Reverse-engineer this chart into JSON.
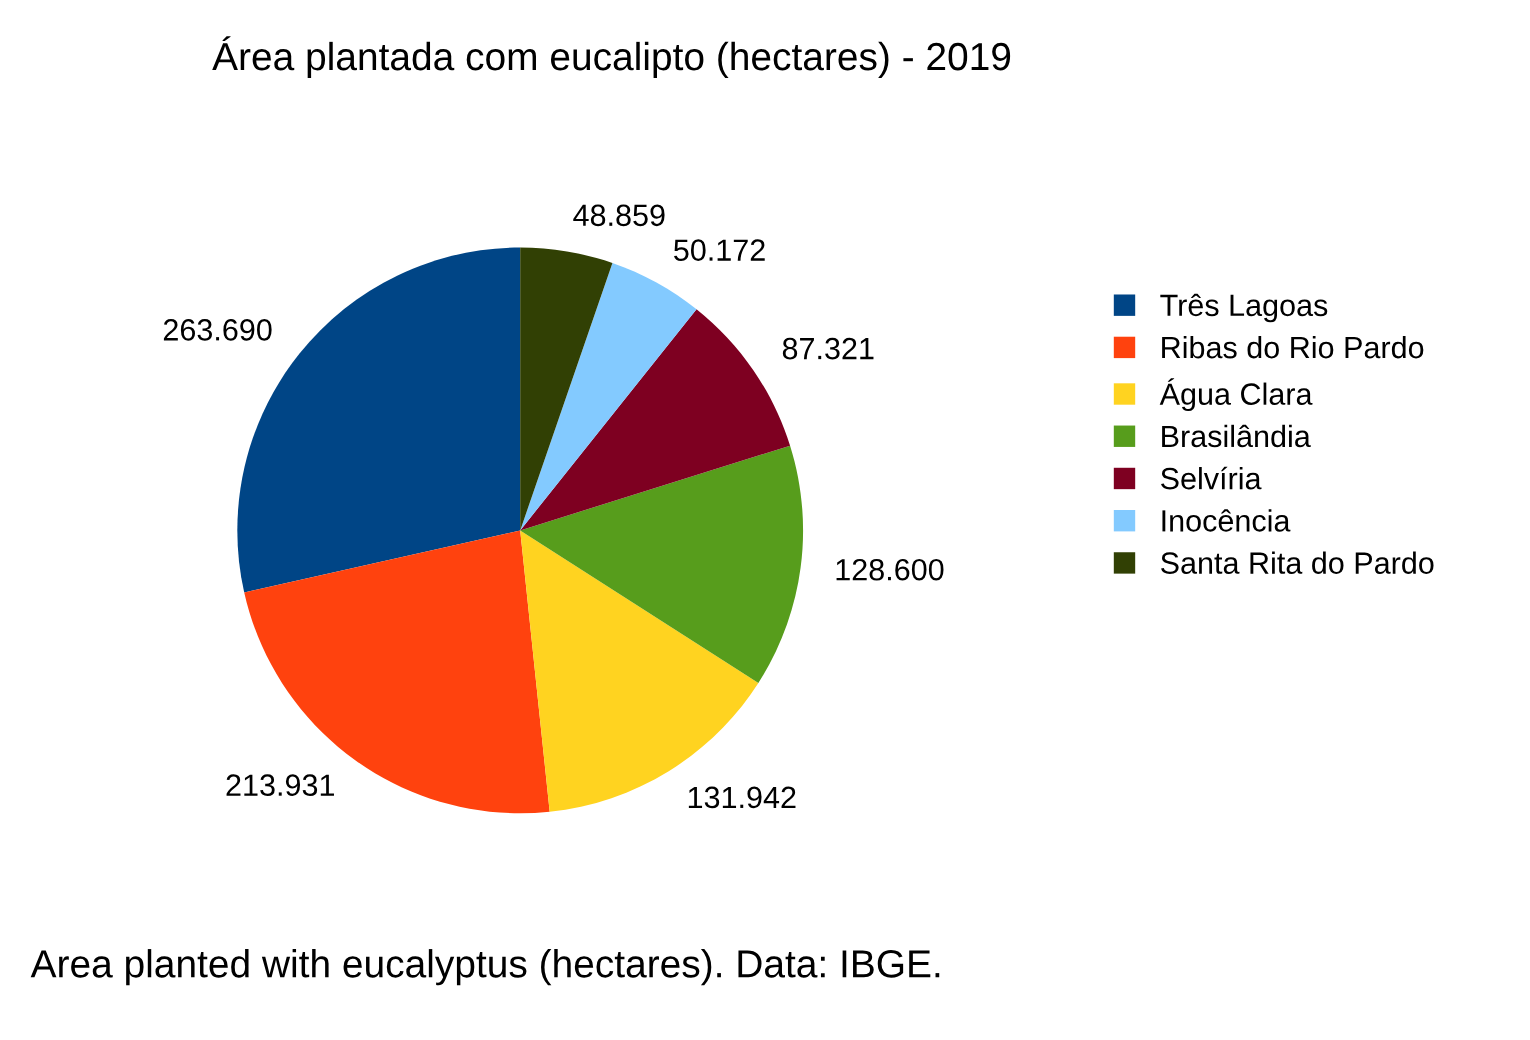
{
  "chart_data": {
    "type": "pie",
    "title": "Área plantada com eucalipto (hectares) - 2019",
    "categories": [
      "Três Lagoas",
      "Ribas do Rio Pardo",
      "Água Clara",
      "Brasilândia",
      "Selvíria",
      "Inocência",
      "Santa Rita do Pardo"
    ],
    "values": [
      263690,
      213931,
      131942,
      128600,
      87321,
      50172,
      48859
    ],
    "value_labels": [
      "263.690",
      "213.931",
      "131.942",
      "128.600",
      "87.321",
      "50.172",
      "48.859"
    ],
    "colors": [
      "#004586",
      "#ff420e",
      "#ffd320",
      "#579d1c",
      "#7e0021",
      "#83caff",
      "#314004"
    ],
    "legend": "right",
    "annotations": [
      "Area planted with eucalyptus (hectares). Data: IBGE."
    ]
  }
}
